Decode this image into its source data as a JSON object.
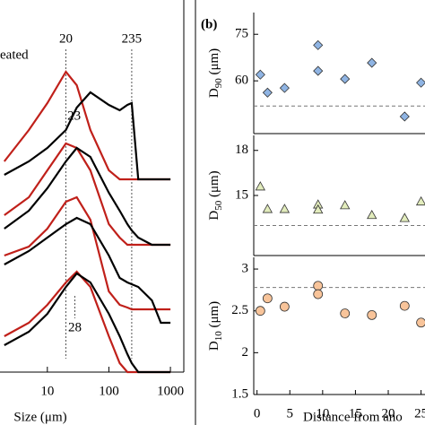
{
  "chart_data": [
    {
      "type": "line",
      "xscale": "log",
      "xlim": [
        1.7,
        1650
      ],
      "xticks": [
        10,
        100,
        1000
      ],
      "xlabel": "Size (μm)",
      "ylim": [
        0,
        410
      ],
      "annotation": "eated",
      "reference_lines": [
        20,
        235
      ],
      "peak_labels": [
        23,
        28
      ],
      "x": [
        2,
        5,
        10,
        20,
        30,
        50,
        100,
        150,
        200,
        235,
        300,
        500,
        700,
        1000
      ],
      "rows": [
        {
          "series": [
            {
              "color": "#c0201a",
              "values": [
                235,
                270,
                300,
                335,
                320,
                270,
                225,
                215,
                215,
                215,
                215,
                215,
                215,
                215
              ]
            },
            {
              "color": "#000000",
              "values": [
                220,
                235,
                250,
                270,
                295,
                312,
                298,
                292,
                298,
                300,
                215,
                215,
                215,
                215
              ]
            }
          ]
        },
        {
          "series": [
            {
              "color": "#c0201a",
              "values": [
                175,
                195,
                225,
                255,
                250,
                225,
                165,
                150,
                142,
                142,
                142,
                142,
                142,
                142
              ]
            },
            {
              "color": "#000000",
              "values": [
                160,
                180,
                205,
                235,
                250,
                240,
                200,
                180,
                165,
                158,
                150,
                142,
                142,
                142
              ]
            }
          ]
        },
        {
          "series": [
            {
              "color": "#c0201a",
              "values": [
                130,
                140,
                160,
                190,
                195,
                170,
                90,
                75,
                72,
                70,
                70,
                70,
                70,
                70
              ]
            },
            {
              "color": "#000000",
              "values": [
                120,
                135,
                150,
                165,
                172,
                165,
                130,
                105,
                100,
                98,
                95,
                80,
                55,
                55
              ]
            }
          ]
        },
        {
          "series": [
            {
              "color": "#c0201a",
              "values": [
                40,
                55,
                75,
                100,
                112,
                95,
                40,
                10,
                0,
                0,
                0,
                0,
                0,
                0
              ]
            },
            {
              "color": "#000000",
              "values": [
                30,
                45,
                65,
                95,
                110,
                100,
                65,
                40,
                20,
                10,
                0,
                0,
                0,
                0
              ]
            }
          ]
        }
      ]
    },
    {
      "type": "scatter",
      "panel_label": "(b)",
      "ylabel": [
        "D",
        "90",
        " (μm)"
      ],
      "marker": "diamond",
      "color": "#8fb4e3",
      "xlim": [
        -0.5,
        25.6
      ],
      "ylim": [
        43,
        82
      ],
      "yticks": [
        60,
        75
      ],
      "reference_line": 51.9,
      "x": [
        0.5,
        1.6,
        4.2,
        9.3,
        9.3,
        13.4,
        17.5,
        22.5,
        25
      ],
      "values": [
        62,
        56.2,
        57.7,
        71.5,
        63.2,
        60.6,
        65.8,
        48.5,
        59.4
      ]
    },
    {
      "type": "scatter",
      "ylabel": [
        "D",
        "50",
        " (μm)"
      ],
      "marker": "triangle",
      "color": "#e2ecbc",
      "xlim": [
        -0.5,
        25.6
      ],
      "ylim": [
        11,
        19
      ],
      "yticks": [
        15,
        18
      ],
      "reference_line": 13,
      "x": [
        0.5,
        1.6,
        4.2,
        9.3,
        9.3,
        13.4,
        17.5,
        22.5,
        25
      ],
      "values": [
        15.6,
        14.1,
        14.1,
        14.4,
        14.06,
        14.35,
        13.7,
        13.5,
        14.6
      ]
    },
    {
      "type": "scatter",
      "ylabel": [
        "D",
        "10",
        " (μm)"
      ],
      "marker": "circle",
      "color": "#f8c49a",
      "xlim": [
        -0.5,
        25.6
      ],
      "ylim": [
        1.5,
        3.14
      ],
      "yticks": [
        1.5,
        2,
        2.5,
        3
      ],
      "reference_line": 2.78,
      "xticks": [
        0,
        5,
        10,
        15,
        20,
        25
      ],
      "xlabel": "Distance from ano",
      "x": [
        0.5,
        1.6,
        4.2,
        9.3,
        9.3,
        13.4,
        17.5,
        22.5,
        25
      ],
      "values": [
        2.5,
        2.65,
        2.55,
        2.8,
        2.7,
        2.47,
        2.45,
        2.56,
        2.36
      ]
    }
  ]
}
